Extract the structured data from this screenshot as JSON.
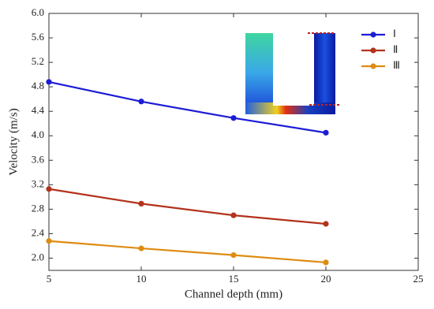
{
  "chart_data": {
    "type": "line",
    "x_label": "Channel depth (mm)",
    "y_label": "Velocity (m/s)",
    "x": [
      5,
      10,
      15,
      20
    ],
    "series": [
      {
        "name": "Ⅰ",
        "color": "#1c1cd6",
        "values": [
          4.88,
          4.56,
          4.29,
          4.05
        ]
      },
      {
        "name": "Ⅱ",
        "color": "#b3321c",
        "values": [
          3.13,
          2.89,
          2.7,
          2.56
        ]
      },
      {
        "name": "Ⅲ",
        "color": "#dd8c12",
        "values": [
          2.28,
          2.16,
          2.05,
          1.93
        ]
      }
    ],
    "xlim": [
      5,
      25
    ],
    "xticks": [
      5,
      10,
      15,
      20,
      25
    ],
    "ylim": [
      1.8,
      6.0
    ],
    "yticks": [
      {
        "value": 2,
        "label": "2.0"
      },
      2.4,
      2.8,
      3.2,
      3.6,
      {
        "value": 4,
        "label": "4.0"
      },
      4.4,
      4.8,
      5.2,
      5.6,
      {
        "value": 6,
        "label": "6.0"
      }
    ],
    "grid": false,
    "legend": "upper right"
  }
}
